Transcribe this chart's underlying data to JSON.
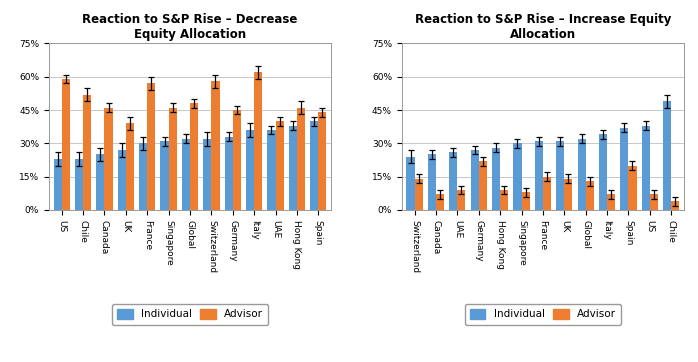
{
  "left": {
    "title": "Reaction to S&P Rise – Decrease\nEquity Allocation",
    "categories": [
      "US",
      "Chile",
      "Canada",
      "UK",
      "France",
      "Singapore",
      "Global",
      "Switzerland",
      "Germany",
      "Italy",
      "UAE",
      "Hong Kong",
      "Spain"
    ],
    "individual": [
      0.23,
      0.23,
      0.25,
      0.27,
      0.3,
      0.31,
      0.32,
      0.32,
      0.33,
      0.36,
      0.36,
      0.38,
      0.4
    ],
    "advisor": [
      0.59,
      0.52,
      0.46,
      0.39,
      0.57,
      0.46,
      0.48,
      0.58,
      0.45,
      0.62,
      0.4,
      0.46,
      0.44
    ],
    "individual_err": [
      0.03,
      0.03,
      0.03,
      0.03,
      0.03,
      0.02,
      0.02,
      0.03,
      0.02,
      0.03,
      0.02,
      0.02,
      0.02
    ],
    "advisor_err": [
      0.02,
      0.03,
      0.02,
      0.03,
      0.03,
      0.02,
      0.02,
      0.03,
      0.02,
      0.03,
      0.02,
      0.03,
      0.02
    ]
  },
  "right": {
    "title": "Reaction to S&P Rise – Increase Equity\nAllocation",
    "categories": [
      "Switzerland",
      "Canada",
      "UAE",
      "Germany",
      "Hong Kong",
      "Singapore",
      "France",
      "UK",
      "Global",
      "Italy",
      "Spain",
      "US",
      "Chile"
    ],
    "individual": [
      0.24,
      0.25,
      0.26,
      0.27,
      0.28,
      0.3,
      0.31,
      0.31,
      0.32,
      0.34,
      0.37,
      0.38,
      0.49
    ],
    "advisor": [
      0.14,
      0.07,
      0.09,
      0.22,
      0.09,
      0.08,
      0.15,
      0.14,
      0.13,
      0.07,
      0.2,
      0.07,
      0.04
    ],
    "individual_err": [
      0.03,
      0.02,
      0.02,
      0.02,
      0.02,
      0.02,
      0.02,
      0.02,
      0.02,
      0.02,
      0.02,
      0.02,
      0.03
    ],
    "advisor_err": [
      0.02,
      0.02,
      0.02,
      0.02,
      0.02,
      0.02,
      0.02,
      0.02,
      0.02,
      0.02,
      0.02,
      0.02,
      0.02
    ]
  },
  "individual_color": "#5B9BD5",
  "advisor_color": "#ED7D31",
  "bar_width": 0.38,
  "ylim": [
    0,
    0.75
  ],
  "yticks": [
    0,
    0.15,
    0.3,
    0.45,
    0.6,
    0.75
  ],
  "ytick_labels": [
    "0%",
    "15%",
    "30%",
    "45%",
    "60%",
    "75%"
  ],
  "legend_labels": [
    "Individual",
    "Advisor"
  ],
  "title_fontsize": 8.5,
  "axis_fontsize": 6.5,
  "legend_fontsize": 7.5,
  "background_color": "#ffffff",
  "grid_color": "#c8c8c8"
}
